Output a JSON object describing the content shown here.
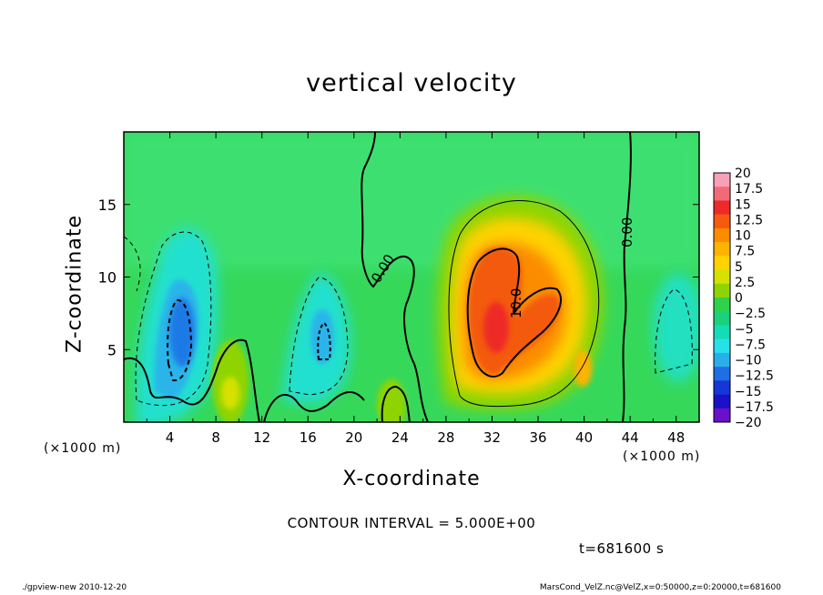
{
  "chart_data": {
    "type": "heatmap",
    "title": "vertical velocity",
    "xlabel": "X-coordinate",
    "ylabel": "Z-coordinate",
    "x_unit": "(×1000 m)",
    "y_unit": "(×1000 m)",
    "xlim": [
      0,
      50
    ],
    "ylim": [
      0,
      20
    ],
    "x_ticks": [
      "4",
      "8",
      "12",
      "16",
      "20",
      "24",
      "28",
      "32",
      "36",
      "40",
      "44",
      "48"
    ],
    "y_ticks": [
      "5",
      "10",
      "15"
    ],
    "colorbar_labels": [
      "20",
      "17.5",
      "15",
      "12.5",
      "10",
      "7.5",
      "5",
      "2.5",
      "0",
      "−2.5",
      "−5",
      "−7.5",
      "−10",
      "−12.5",
      "−15",
      "−17.5",
      "−20"
    ],
    "colorbar_colors": [
      "#f7a0b8",
      "#f26a7a",
      "#ee2a28",
      "#f45a10",
      "#fb8c00",
      "#fbb400",
      "#ffd200",
      "#d6e100",
      "#8fd400",
      "#2fd24a",
      "#19d27a",
      "#14dcb4",
      "#28e0ea",
      "#2aaeea",
      "#1e6ee6",
      "#1636d8",
      "#1a10c8",
      "#6a10c8"
    ],
    "contour_labels": [
      "0.00",
      "0.00",
      "10.0"
    ],
    "contour_interval": "CONTOUR INTERVAL = 5.000E+00",
    "time": "t=681600 s",
    "features": [
      {
        "type": "updraft",
        "x": 33,
        "z": 7,
        "max": 13
      },
      {
        "type": "downdraft",
        "x": 5,
        "z": 7,
        "min": -11
      },
      {
        "type": "downdraft",
        "x": 17.5,
        "z": 6,
        "min": -9
      },
      {
        "type": "updraft",
        "x": 9.3,
        "z": 2,
        "max": 6
      },
      {
        "type": "updraft",
        "x": 40,
        "z": 3,
        "max": 7
      }
    ]
  },
  "footer": {
    "left": "./gpview-new   2010-12-20",
    "right": "MarsCond_VelZ.nc@VelZ,x=0:50000,z=0:20000,t=681600"
  }
}
